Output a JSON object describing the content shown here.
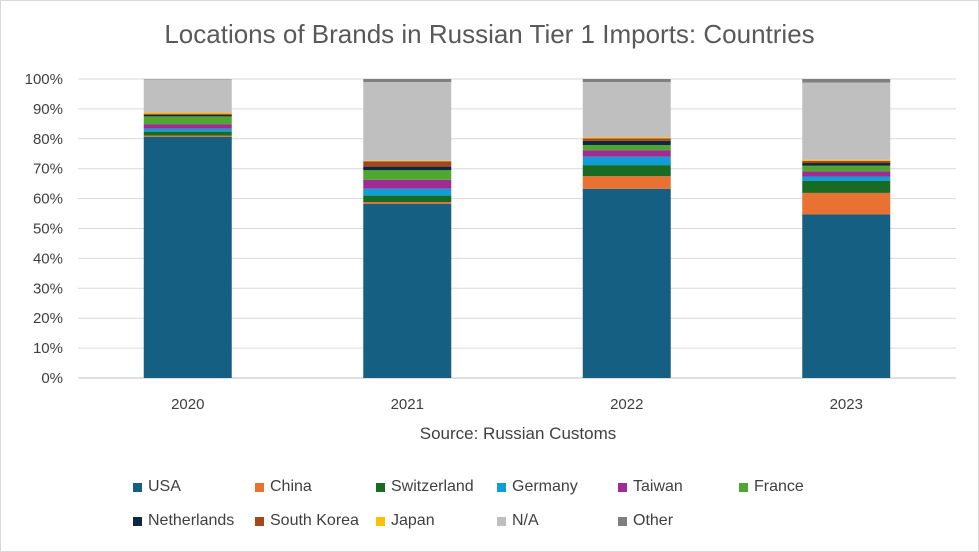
{
  "chart_data": {
    "type": "bar",
    "stacked": true,
    "title": "Locations of Brands in Russian Tier 1 Imports: Countries",
    "xlabel": "Source: Russian Customs",
    "ylabel": "",
    "ylim": [
      0,
      100
    ],
    "yticks": [
      "0%",
      "10%",
      "20%",
      "30%",
      "40%",
      "50%",
      "60%",
      "70%",
      "80%",
      "90%",
      "100%"
    ],
    "categories": [
      "2020",
      "2021",
      "2022",
      "2023"
    ],
    "grid": true,
    "legend_position": "bottom",
    "series": [
      {
        "name": "USA",
        "color": "#156082",
        "values": [
          80.7,
          58.2,
          63.3,
          54.7
        ]
      },
      {
        "name": "China",
        "color": "#e97132",
        "values": [
          0.4,
          0.6,
          4.2,
          7.2
        ]
      },
      {
        "name": "Switzerland",
        "color": "#196b24",
        "values": [
          1.3,
          2.2,
          3.7,
          4.0
        ]
      },
      {
        "name": "Germany",
        "color": "#0f9ed5",
        "values": [
          1.0,
          2.3,
          2.8,
          1.5
        ]
      },
      {
        "name": "Taiwan",
        "color": "#a02b93",
        "values": [
          1.5,
          3.0,
          2.2,
          1.7
        ]
      },
      {
        "name": "France",
        "color": "#4ea72e",
        "values": [
          2.6,
          3.2,
          1.7,
          1.9
        ]
      },
      {
        "name": "Netherlands",
        "color": "#0e2841",
        "values": [
          0.5,
          1.2,
          1.4,
          0.9
        ]
      },
      {
        "name": "South Korea",
        "color": "#a5461e",
        "values": [
          0.4,
          1.8,
          0.8,
          0.7
        ]
      },
      {
        "name": "Japan",
        "color": "#ffc000",
        "values": [
          0.4,
          0.2,
          0.4,
          0.4
        ]
      },
      {
        "name": "N/A",
        "color": "#bfbfbf",
        "values": [
          11.1,
          26.3,
          18.5,
          25.8
        ]
      },
      {
        "name": "Other",
        "color": "#7f7f7f",
        "values": [
          0.1,
          1.0,
          1.0,
          1.2
        ]
      }
    ]
  }
}
